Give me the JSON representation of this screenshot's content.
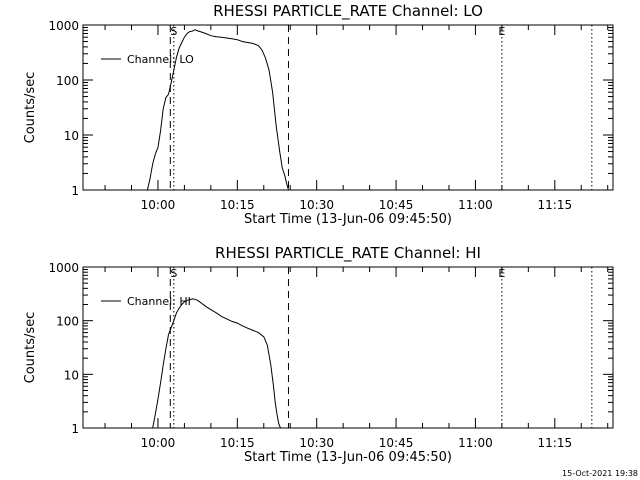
{
  "chart_data": [
    {
      "type": "line",
      "title": "RHESSI PARTICLE_RATE Channel: LO",
      "xlabel": "Start Time (13-Jun-06 09:45:50)",
      "ylabel": "Counts/sec",
      "y_scale": "log",
      "ylim": [
        1,
        1000
      ],
      "y_ticks": [
        1,
        10,
        100,
        1000
      ],
      "y_tick_labels": [
        "1",
        "10",
        "100",
        "1000"
      ],
      "x_range": [
        "09:45:50",
        "11:26:00"
      ],
      "x_ticks": [
        "10:00",
        "10:15",
        "10:30",
        "10:45",
        "11:00",
        "11:15"
      ],
      "legend": {
        "placement": "top-left",
        "entries": [
          "Channel: LO"
        ]
      },
      "markers": [
        {
          "label": "S",
          "time": "10:03:00",
          "style": "dotted"
        },
        {
          "label": "",
          "time": "10:02:20",
          "style": "dashed"
        },
        {
          "label": "",
          "time": "10:24:40",
          "style": "dashed"
        },
        {
          "label": "E",
          "time": "11:05:00",
          "style": "dotted"
        },
        {
          "label": "",
          "time": "11:22:00",
          "style": "dotted"
        }
      ],
      "series": [
        {
          "name": "Channel: LO",
          "x": [
            "09:58:00",
            "09:58:30",
            "09:59:00",
            "09:59:30",
            "10:00:00",
            "10:00:30",
            "10:01:00",
            "10:01:30",
            "10:02:00",
            "10:02:30",
            "10:03:00",
            "10:03:30",
            "10:04:00",
            "10:04:30",
            "10:05:00",
            "10:05:30",
            "10:06:00",
            "10:06:30",
            "10:07:00",
            "10:07:30",
            "10:08:00",
            "10:09:00",
            "10:10:00",
            "10:11:00",
            "10:12:00",
            "10:13:00",
            "10:14:00",
            "10:15:00",
            "10:16:00",
            "10:17:00",
            "10:18:00",
            "10:19:00",
            "10:19:40",
            "10:20:20",
            "10:21:00",
            "10:21:40",
            "10:22:20",
            "10:23:00",
            "10:23:30",
            "10:24:00",
            "10:24:20",
            "10:24:40"
          ],
          "y": [
            1,
            1.6,
            3,
            4.5,
            6,
            12,
            30,
            48,
            55,
            90,
            150,
            260,
            380,
            480,
            600,
            700,
            760,
            770,
            820,
            780,
            760,
            700,
            640,
            610,
            600,
            580,
            560,
            540,
            500,
            480,
            460,
            420,
            350,
            250,
            150,
            60,
            15,
            5,
            2.5,
            1.8,
            1.3,
            1
          ]
        }
      ]
    },
    {
      "type": "line",
      "title": "RHESSI PARTICLE_RATE Channel: HI",
      "xlabel": "Start Time (13-Jun-06 09:45:50)",
      "ylabel": "Counts/sec",
      "y_scale": "log",
      "ylim": [
        1,
        1000
      ],
      "y_ticks": [
        1,
        10,
        100,
        1000
      ],
      "y_tick_labels": [
        "1",
        "10",
        "100",
        "1000"
      ],
      "x_range": [
        "09:45:50",
        "11:26:00"
      ],
      "x_ticks": [
        "10:00",
        "10:15",
        "10:30",
        "10:45",
        "11:00",
        "11:15"
      ],
      "legend": {
        "placement": "top-left",
        "entries": [
          "Channel: HI"
        ]
      },
      "markers": [
        {
          "label": "S",
          "time": "10:03:00",
          "style": "dotted"
        },
        {
          "label": "",
          "time": "10:02:20",
          "style": "dashed"
        },
        {
          "label": "",
          "time": "10:24:40",
          "style": "dashed"
        },
        {
          "label": "E",
          "time": "11:05:00",
          "style": "dotted"
        },
        {
          "label": "",
          "time": "11:22:00",
          "style": "dotted"
        }
      ],
      "series": [
        {
          "name": "Channel: HI",
          "x": [
            "09:59:00",
            "09:59:30",
            "10:00:00",
            "10:00:30",
            "10:01:00",
            "10:01:30",
            "10:02:00",
            "10:02:30",
            "10:03:00",
            "10:03:30",
            "10:04:00",
            "10:04:30",
            "10:05:00",
            "10:05:30",
            "10:06:00",
            "10:06:30",
            "10:07:00",
            "10:07:30",
            "10:08:00",
            "10:09:00",
            "10:10:00",
            "10:11:00",
            "10:12:00",
            "10:13:00",
            "10:14:00",
            "10:15:00",
            "10:16:00",
            "10:17:00",
            "10:18:00",
            "10:19:00",
            "10:20:00",
            "10:20:40",
            "10:21:20",
            "10:21:50",
            "10:22:10",
            "10:22:30",
            "10:22:50",
            "10:23:10"
          ],
          "y": [
            1,
            1.8,
            3.5,
            7,
            15,
            30,
            55,
            75,
            100,
            140,
            170,
            200,
            225,
            240,
            245,
            255,
            250,
            240,
            220,
            185,
            160,
            140,
            120,
            108,
            97,
            90,
            80,
            72,
            66,
            60,
            50,
            35,
            15,
            6,
            3,
            1.8,
            1.2,
            1
          ]
        }
      ]
    }
  ],
  "footer": {
    "timestamp": "15-Oct-2021 19:38"
  }
}
